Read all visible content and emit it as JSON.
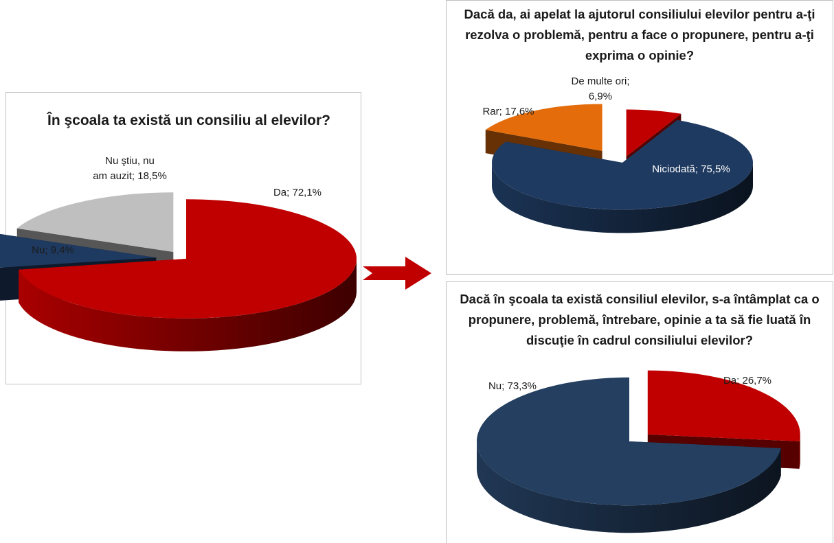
{
  "chart_data": [
    {
      "id": "c1",
      "type": "pie",
      "title": "În şcoala ta există un consiliu al elevilor?",
      "slices": [
        {
          "label": "Da",
          "value": 72.1,
          "text": "Da; 72,1%",
          "color": "#c00000"
        },
        {
          "label": "Nu",
          "value": 9.4,
          "text": "Nu; 9,4%",
          "color": "#1f3a60"
        },
        {
          "label": "Nu ştiu, nu am auzit",
          "value": 18.5,
          "text": "Nu ştiu, nu am auzit; 18,5%",
          "color": "#bfbfbf"
        }
      ]
    },
    {
      "id": "c2",
      "type": "pie",
      "title": "Dacă da, ai apelat la ajutorul consiliului elevilor pentru a-ţi rezolva o problemă, pentru a face o propunere, pentru a-ţi exprima o opinie?",
      "slices": [
        {
          "label": "De multe ori",
          "value": 6.9,
          "text": "De multe ori; 6,9%",
          "color": "#c00000"
        },
        {
          "label": "Niciodată",
          "value": 75.5,
          "text": "Niciodată; 75,5%",
          "color": "#1f3a60"
        },
        {
          "label": "Rar",
          "value": 17.6,
          "text": "Rar; 17,6%",
          "color": "#e46c0a"
        }
      ]
    },
    {
      "id": "c3",
      "type": "pie",
      "title": "Dacă în şcoala ta există consiliul elevilor, s-a întâmplat ca o propunere, problemă, întrebare, opinie a ta să fie luată în discuţie în cadrul consiliului elevilor?",
      "slices": [
        {
          "label": "Da",
          "value": 26.7,
          "text": "Da; 26,7%",
          "color": "#c00000"
        },
        {
          "label": "Nu",
          "value": 73.3,
          "text": "Nu; 73,3%",
          "color": "#243f60"
        }
      ]
    }
  ],
  "arrow_color": "#c00000"
}
